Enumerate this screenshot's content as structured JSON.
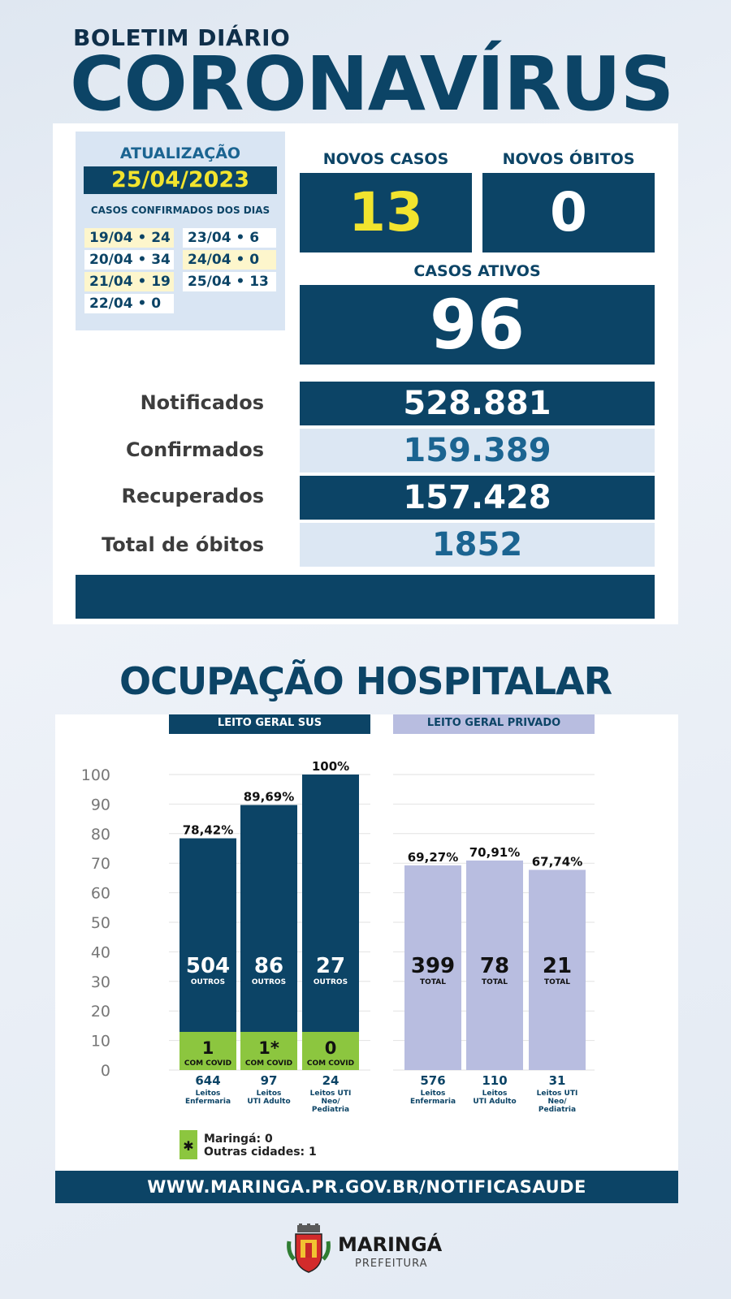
{
  "header": {
    "subtitle": "BOLETIM DIÁRIO",
    "title": "CORONAVÍRUS"
  },
  "update": {
    "label": "ATUALIZAÇÃO",
    "date": "25/04/2023",
    "daily_title": "CASOS CONFIRMADOS DOS DIAS",
    "daily": [
      "19/04 • 24",
      "23/04 • 6",
      "20/04 • 34",
      "24/04 • 0",
      "21/04 • 19",
      "25/04 • 13",
      "22/04 • 0"
    ]
  },
  "kpis": {
    "novos_casos_label": "NOVOS CASOS",
    "novos_casos_value": "13",
    "novos_obitos_label": "NOVOS ÓBITOS",
    "novos_obitos_value": "0",
    "casos_ativos_label": "CASOS ATIVOS",
    "casos_ativos_value": "96"
  },
  "stats": [
    {
      "label": "Notificados",
      "value": "528.881"
    },
    {
      "label": "Confirmados",
      "value": "159.389"
    },
    {
      "label": "Recuperados",
      "value": "157.428"
    },
    {
      "label": "Total de óbitos",
      "value": "1852"
    }
  ],
  "colors": {
    "navy": "#0c4466",
    "yellow": "#f2e42e",
    "green": "#8cc63f",
    "lavender": "#b8bde0",
    "light_blue": "#dce7f3"
  },
  "hospital": {
    "title": "OCUPAÇÃO HOSPITALAR"
  },
  "chart_data": {
    "type": "bar",
    "y_ticks": [
      "100",
      "90",
      "80",
      "70",
      "60",
      "50",
      "40",
      "30",
      "20",
      "10",
      "0"
    ],
    "ylim": [
      0,
      100
    ],
    "groups": [
      {
        "name": "LEITO GERAL SUS",
        "bars": [
          {
            "percent": 78.42,
            "percent_label": "78,42%",
            "main_value": "504",
            "main_caption": "OUTROS",
            "covid_value": "1",
            "covid_caption": "COM COVID",
            "total_beds": "644",
            "category_lines": [
              "Leitos",
              "Enfermaria"
            ]
          },
          {
            "percent": 89.69,
            "percent_label": "89,69%",
            "main_value": "86",
            "main_caption": "OUTROS",
            "covid_value": "1*",
            "covid_caption": "COM COVID",
            "total_beds": "97",
            "category_lines": [
              "Leitos",
              "UTI Adulto"
            ]
          },
          {
            "percent": 100,
            "percent_label": "100%",
            "main_value": "27",
            "main_caption": "OUTROS",
            "covid_value": "0",
            "covid_caption": "COM COVID",
            "total_beds": "24",
            "category_lines": [
              "Leitos UTI",
              "Neo/",
              "Pediatria"
            ]
          }
        ]
      },
      {
        "name": "LEITO GERAL PRIVADO",
        "bars": [
          {
            "percent": 69.27,
            "percent_label": "69,27%",
            "main_value": "399",
            "main_caption": "TOTAL",
            "total_beds": "576",
            "category_lines": [
              "Leitos",
              "Enfermaria"
            ]
          },
          {
            "percent": 70.91,
            "percent_label": "70,91%",
            "main_value": "78",
            "main_caption": "TOTAL",
            "total_beds": "110",
            "category_lines": [
              "Leitos",
              "UTI Adulto"
            ]
          },
          {
            "percent": 67.74,
            "percent_label": "67,74%",
            "main_value": "21",
            "main_caption": "TOTAL",
            "total_beds": "31",
            "category_lines": [
              "Leitos UTI",
              "Neo/",
              "Pediatria"
            ]
          }
        ]
      }
    ],
    "note_symbol": "✱",
    "notes": [
      "Maringá: 0",
      "Outras cidades: 1"
    ]
  },
  "footer": {
    "url": "WWW.MARINGA.PR.GOV.BR/NOTIFICASAUDE",
    "logo_name": "MARINGÁ",
    "logo_sub": "PREFEITURA"
  }
}
